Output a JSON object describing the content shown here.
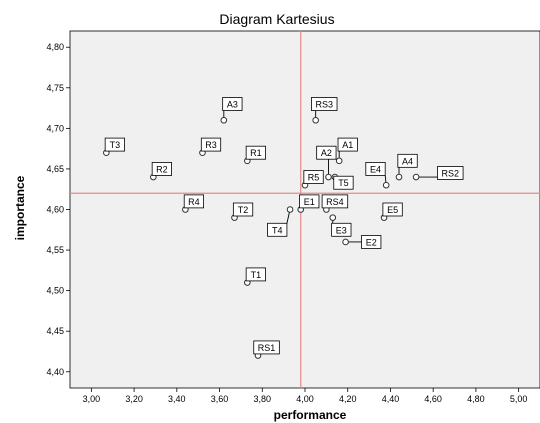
{
  "chart_data": {
    "type": "scatter",
    "title": "Diagram Kartesius",
    "xlabel": "performance",
    "ylabel": "importance",
    "xlim": [
      2.9,
      5.1
    ],
    "ylim": [
      4.38,
      4.82
    ],
    "xticks": [
      "3,00",
      "3,20",
      "3,40",
      "3,60",
      "3,80",
      "4,00",
      "4,20",
      "4,40",
      "4,60",
      "4,80",
      "5,00"
    ],
    "yticks": [
      "4,40",
      "4,45",
      "4,50",
      "4,55",
      "4,60",
      "4,65",
      "4,70",
      "4,75",
      "4,80"
    ],
    "xtick_values": [
      3.0,
      3.2,
      3.4,
      3.6,
      3.8,
      4.0,
      4.2,
      4.4,
      4.6,
      4.8,
      5.0
    ],
    "ytick_values": [
      4.4,
      4.45,
      4.5,
      4.55,
      4.6,
      4.65,
      4.7,
      4.75,
      4.8
    ],
    "reference_lines": {
      "x": 3.98,
      "y": 4.62,
      "color": "#e88a8a"
    },
    "background": "#f0f0f0",
    "grid": false,
    "points": [
      {
        "label": "T3",
        "x": 3.07,
        "y": 4.67,
        "lx": 3.11,
        "ly": 4.68
      },
      {
        "label": "R2",
        "x": 3.29,
        "y": 4.64,
        "lx": 3.33,
        "ly": 4.65
      },
      {
        "label": "R3",
        "x": 3.52,
        "y": 4.67,
        "lx": 3.56,
        "ly": 4.68
      },
      {
        "label": "A3",
        "x": 3.62,
        "y": 4.71,
        "lx": 3.66,
        "ly": 4.73
      },
      {
        "label": "R1",
        "x": 3.73,
        "y": 4.66,
        "lx": 3.77,
        "ly": 4.67
      },
      {
        "label": "R4",
        "x": 3.44,
        "y": 4.6,
        "lx": 3.48,
        "ly": 4.61
      },
      {
        "label": "T2",
        "x": 3.67,
        "y": 4.59,
        "lx": 3.71,
        "ly": 4.6
      },
      {
        "label": "T4",
        "x": 3.93,
        "y": 4.6,
        "lx": 3.87,
        "ly": 4.575
      },
      {
        "label": "E1",
        "x": 3.98,
        "y": 4.6,
        "lx": 4.02,
        "ly": 4.61
      },
      {
        "label": "R5",
        "x": 4.0,
        "y": 4.63,
        "lx": 4.04,
        "ly": 4.64
      },
      {
        "label": "RS4",
        "x": 4.1,
        "y": 4.6,
        "lx": 4.14,
        "ly": 4.61
      },
      {
        "label": "RS3",
        "x": 4.05,
        "y": 4.71,
        "lx": 4.09,
        "ly": 4.73
      },
      {
        "label": "A1",
        "x": 4.16,
        "y": 4.66,
        "lx": 4.2,
        "ly": 4.68
      },
      {
        "label": "A2",
        "x": 4.11,
        "y": 4.64,
        "lx": 4.1,
        "ly": 4.67
      },
      {
        "label": "T5",
        "x": 4.14,
        "y": 4.64,
        "lx": 4.18,
        "ly": 4.633
      },
      {
        "label": "E3",
        "x": 4.13,
        "y": 4.59,
        "lx": 4.17,
        "ly": 4.575
      },
      {
        "label": "E2",
        "x": 4.19,
        "y": 4.56,
        "lx": 4.31,
        "ly": 4.56
      },
      {
        "label": "E4",
        "x": 4.38,
        "y": 4.63,
        "lx": 4.33,
        "ly": 4.65
      },
      {
        "label": "A4",
        "x": 4.44,
        "y": 4.64,
        "lx": 4.48,
        "ly": 4.66
      },
      {
        "label": "RS2",
        "x": 4.52,
        "y": 4.64,
        "lx": 4.68,
        "ly": 4.645
      },
      {
        "label": "E5",
        "x": 4.37,
        "y": 4.59,
        "lx": 4.41,
        "ly": 4.6
      },
      {
        "label": "T1",
        "x": 3.73,
        "y": 4.51,
        "lx": 3.77,
        "ly": 4.52
      },
      {
        "label": "RS1",
        "x": 3.78,
        "y": 4.42,
        "lx": 3.82,
        "ly": 4.43
      }
    ]
  }
}
